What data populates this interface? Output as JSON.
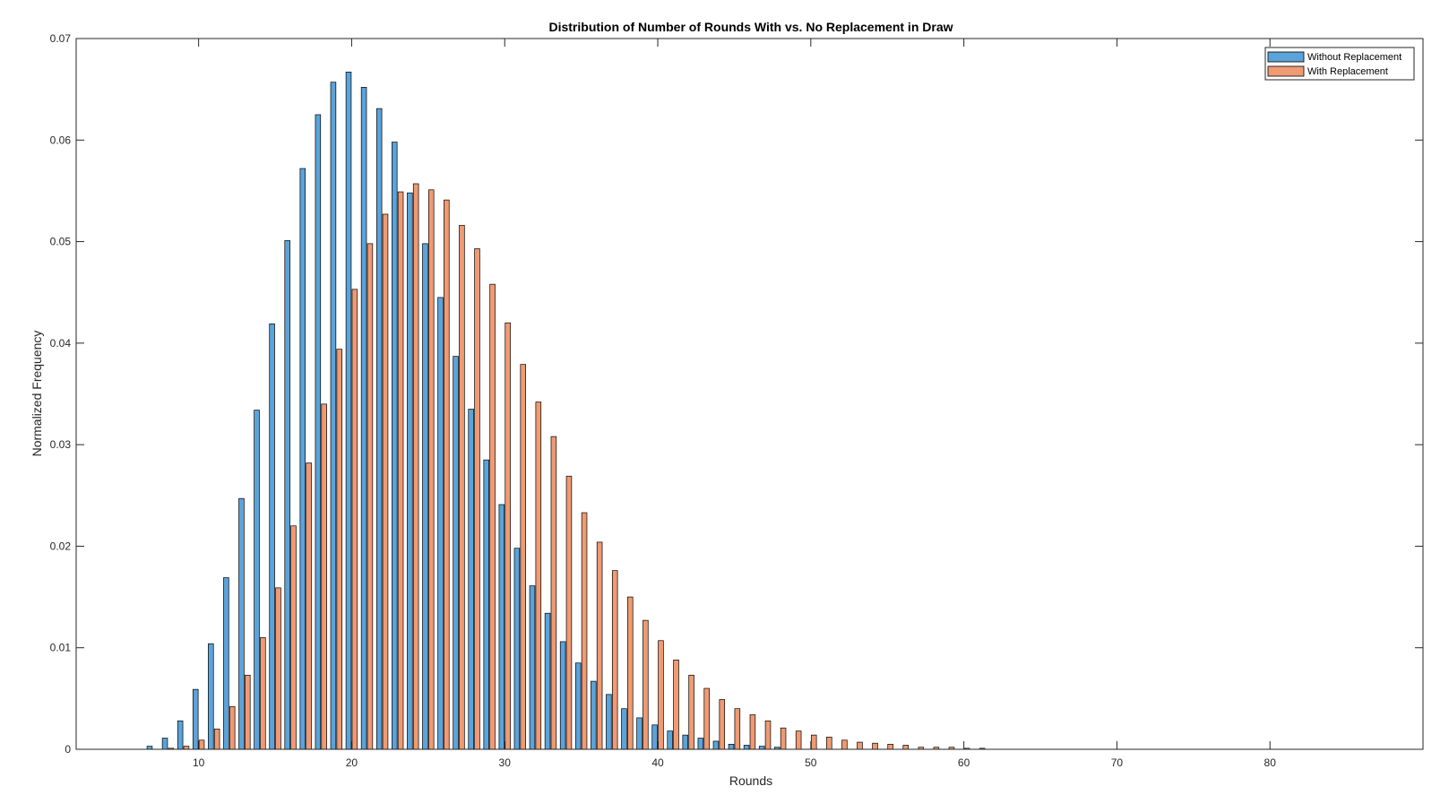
{
  "chart_data": {
    "type": "bar",
    "title": "Distribution of Number of Rounds With vs. No Replacement in Draw",
    "xlabel": "Rounds",
    "ylabel": "Normalized Frequency",
    "xlim": [
      2,
      90
    ],
    "ylim": [
      0,
      0.07
    ],
    "xticks": [
      10,
      20,
      30,
      40,
      50,
      60,
      70,
      80
    ],
    "yticks": [
      0,
      0.01,
      0.02,
      0.03,
      0.04,
      0.05,
      0.06,
      0.07
    ],
    "ytick_labels": [
      "0",
      "0.01",
      "0.02",
      "0.03",
      "0.04",
      "0.05",
      "0.06",
      "0.07"
    ],
    "grid": false,
    "legend_position": "top-right",
    "series": [
      {
        "name": "Without Replacement",
        "color": "#5ba3d9",
        "x": [
          7,
          8,
          9,
          10,
          11,
          12,
          13,
          14,
          15,
          16,
          17,
          18,
          19,
          20,
          21,
          22,
          23,
          24,
          25,
          26,
          27,
          28,
          29,
          30,
          31,
          32,
          33,
          34,
          35,
          36,
          37,
          38,
          39,
          40,
          41,
          42,
          43,
          44,
          45,
          46,
          47,
          48
        ],
        "values": [
          0.0003,
          0.0011,
          0.0028,
          0.0059,
          0.0104,
          0.0169,
          0.0247,
          0.0334,
          0.0419,
          0.0501,
          0.0572,
          0.0625,
          0.0657,
          0.0667,
          0.0652,
          0.0631,
          0.0598,
          0.0548,
          0.0498,
          0.0445,
          0.0387,
          0.0335,
          0.0285,
          0.0241,
          0.0198,
          0.0161,
          0.0134,
          0.0106,
          0.0085,
          0.0067,
          0.0054,
          0.004,
          0.0031,
          0.0024,
          0.0018,
          0.0014,
          0.0011,
          0.0008,
          0.0005,
          0.0004,
          0.0003,
          0.0002
        ]
      },
      {
        "name": "With Replacement",
        "color": "#ef9a73",
        "x": [
          8,
          9,
          10,
          11,
          12,
          13,
          14,
          15,
          16,
          17,
          18,
          19,
          20,
          21,
          22,
          23,
          24,
          25,
          26,
          27,
          28,
          29,
          30,
          31,
          32,
          33,
          34,
          35,
          36,
          37,
          38,
          39,
          40,
          41,
          42,
          43,
          44,
          45,
          46,
          47,
          48,
          49,
          50,
          51,
          52,
          53,
          54,
          55,
          56,
          57,
          58,
          59,
          60,
          61
        ],
        "values": [
          0.0001,
          0.0003,
          0.0009,
          0.002,
          0.0042,
          0.0073,
          0.011,
          0.0159,
          0.022,
          0.0282,
          0.034,
          0.0394,
          0.0453,
          0.0498,
          0.0527,
          0.0549,
          0.0557,
          0.0551,
          0.0541,
          0.0516,
          0.0493,
          0.0458,
          0.042,
          0.0379,
          0.0342,
          0.0308,
          0.0269,
          0.0233,
          0.0204,
          0.0176,
          0.015,
          0.0127,
          0.0107,
          0.0088,
          0.0073,
          0.006,
          0.0049,
          0.004,
          0.0034,
          0.0028,
          0.0021,
          0.0018,
          0.0014,
          0.0012,
          0.0009,
          0.0007,
          0.0006,
          0.0005,
          0.0004,
          0.0002,
          0.0002,
          0.0002,
          0.0001,
          0.0001
        ]
      }
    ]
  }
}
